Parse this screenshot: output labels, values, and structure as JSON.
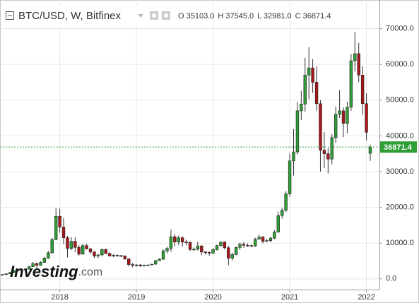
{
  "chart_data": {
    "type": "candlestick",
    "title": "BTC/USD, W, Bitfinex",
    "ohlc_header": [
      "O 35103.0",
      "H 37545.0",
      "L 32981.0",
      "C 36871.4"
    ],
    "watermark": "Investing",
    "watermark_suffix": ".com",
    "up_color": "#2f9e37",
    "down_color": "#a8161a",
    "last_line_color": "#2f9e37",
    "grid": true,
    "xlim": [
      2017.22,
      2022.17
    ],
    "xticks": [
      2018,
      2019,
      2020,
      2021,
      2022
    ],
    "ylim": [
      -3000,
      78000
    ],
    "yticks": [
      {
        "value": 0,
        "label": "0.0"
      },
      {
        "value": 10000,
        "label": "10000.0"
      },
      {
        "value": 20000,
        "label": "20000.0"
      },
      {
        "value": 30000,
        "label": "30000.0"
      },
      {
        "value": 40000,
        "label": "40000.0"
      },
      {
        "value": 50000,
        "label": "50000.0"
      },
      {
        "value": 60000,
        "label": "60000.0"
      },
      {
        "value": 70000,
        "label": "70000.0"
      }
    ],
    "x": [
      2017.25,
      2017.3,
      2017.35,
      2017.4,
      2017.45,
      2017.5,
      2017.55,
      2017.6,
      2017.65,
      2017.7,
      2017.75,
      2017.8,
      2017.85,
      2017.9,
      2017.95,
      2018,
      2018.05,
      2018.1,
      2018.15,
      2018.2,
      2018.25,
      2018.3,
      2018.35,
      2018.4,
      2018.45,
      2018.5,
      2018.55,
      2018.6,
      2018.65,
      2018.7,
      2018.75,
      2018.8,
      2018.85,
      2018.9,
      2018.95,
      2019,
      2019.05,
      2019.1,
      2019.15,
      2019.2,
      2019.25,
      2019.3,
      2019.35,
      2019.4,
      2019.45,
      2019.5,
      2019.55,
      2019.6,
      2019.65,
      2019.7,
      2019.75,
      2019.8,
      2019.85,
      2019.9,
      2019.95,
      2020,
      2020.05,
      2020.1,
      2020.15,
      2020.2,
      2020.25,
      2020.3,
      2020.35,
      2020.4,
      2020.45,
      2020.5,
      2020.55,
      2020.6,
      2020.65,
      2020.7,
      2020.75,
      2020.8,
      2020.85,
      2020.9,
      2020.95,
      2021,
      2021.05,
      2021.1,
      2021.15,
      2021.2,
      2021.25,
      2021.3,
      2021.35,
      2021.4,
      2021.45,
      2021.5,
      2021.55,
      2021.6,
      2021.65,
      2021.7,
      2021.75,
      2021.8,
      2021.85,
      2021.9,
      2021.95,
      2022,
      2022.05
    ],
    "open": [
      1000,
      1200,
      1400,
      1800,
      2300,
      2600,
      2500,
      2700,
      3400,
      4300,
      3800,
      4600,
      5800,
      7300,
      11000,
      17500,
      14500,
      11500,
      8500,
      10500,
      8800,
      6900,
      9300,
      8400,
      7500,
      6400,
      6700,
      8200,
      7100,
      6400,
      6600,
      6500,
      6400,
      5600,
      4000,
      3800,
      3900,
      3600,
      3800,
      3900,
      4100,
      5100,
      5500,
      7800,
      8500,
      11800,
      10300,
      11500,
      10300,
      10200,
      8200,
      8300,
      9200,
      7500,
      7400,
      7200,
      8200,
      9300,
      10300,
      8700,
      5800,
      6800,
      8800,
      9700,
      9400,
      9300,
      9200,
      11100,
      11700,
      10500,
      10700,
      11400,
      13100,
      17700,
      19200,
      23800,
      33000,
      35500,
      47000,
      48900,
      57000,
      59000,
      55000,
      49000,
      36000,
      35000,
      33500,
      39500,
      46000,
      47000,
      43500,
      48000,
      61000,
      63000,
      57000,
      49000,
      35103
    ],
    "high": [
      1300,
      1500,
      1900,
      2500,
      2900,
      2800,
      2900,
      3600,
      4700,
      4500,
      4900,
      6100,
      7800,
      11500,
      19800,
      19600,
      17000,
      12000,
      11700,
      11600,
      9400,
      9800,
      9800,
      8700,
      7800,
      6900,
      8500,
      8500,
      7400,
      6900,
      6800,
      6700,
      6600,
      5700,
      4500,
      4200,
      4100,
      4000,
      4000,
      4200,
      5300,
      5800,
      8300,
      9000,
      13800,
      12500,
      12100,
      11900,
      10900,
      10500,
      8800,
      10400,
      9500,
      7800,
      7700,
      8600,
      9600,
      10500,
      10500,
      9200,
      7300,
      9000,
      10100,
      10300,
      9900,
      9600,
      11500,
      12400,
      12000,
      11200,
      11800,
      13600,
      18800,
      19900,
      24500,
      35000,
      41900,
      49500,
      52600,
      61800,
      64800,
      61500,
      59500,
      50000,
      41000,
      36500,
      40500,
      48200,
      52800,
      48000,
      49500,
      62900,
      69000,
      66000,
      59500,
      51900,
      37545
    ],
    "low": [
      950,
      1100,
      1300,
      1700,
      2200,
      1900,
      2400,
      2600,
      3300,
      2900,
      3700,
      4500,
      5600,
      7000,
      10800,
      12900,
      9700,
      6000,
      8000,
      7500,
      6500,
      6800,
      8200,
      7000,
      5800,
      5800,
      6400,
      6900,
      6300,
      6100,
      6200,
      6100,
      5300,
      3500,
      3200,
      3400,
      3400,
      3500,
      3700,
      3800,
      4000,
      5000,
      5300,
      7100,
      7600,
      9100,
      9400,
      9100,
      9300,
      7800,
      7700,
      7900,
      6600,
      6800,
      6500,
      6900,
      7900,
      9000,
      8200,
      3800,
      5200,
      6600,
      8100,
      8700,
      9000,
      8900,
      8900,
      11000,
      9900,
      10300,
      10300,
      11100,
      12900,
      16900,
      18700,
      23000,
      28900,
      34800,
      44400,
      46700,
      50300,
      52000,
      47000,
      30000,
      31000,
      29500,
      32000,
      38000,
      45000,
      39600,
      40700,
      47000,
      58000,
      55000,
      46000,
      38700,
      32981
    ],
    "close": [
      1200,
      1400,
      1800,
      2300,
      2600,
      2500,
      2700,
      3400,
      4300,
      3800,
      4600,
      5800,
      7300,
      11000,
      17500,
      14500,
      11500,
      8500,
      10500,
      8800,
      6900,
      9300,
      8400,
      7500,
      6400,
      6700,
      8200,
      7100,
      6400,
      6600,
      6500,
      6400,
      5600,
      4000,
      3800,
      3900,
      3600,
      3800,
      3900,
      4100,
      5100,
      5500,
      7800,
      8500,
      11800,
      10300,
      11500,
      10300,
      10200,
      8200,
      8300,
      9200,
      7500,
      7400,
      7200,
      8200,
      9300,
      10300,
      8700,
      5800,
      6800,
      8800,
      9700,
      9400,
      9300,
      9200,
      11100,
      11700,
      10500,
      10700,
      11400,
      13100,
      17700,
      19200,
      23800,
      33000,
      35500,
      47000,
      48900,
      57000,
      59000,
      55000,
      49000,
      36000,
      35000,
      33500,
      39500,
      46000,
      47000,
      43500,
      48000,
      61000,
      63000,
      57000,
      49000,
      41000,
      36871.4
    ]
  }
}
